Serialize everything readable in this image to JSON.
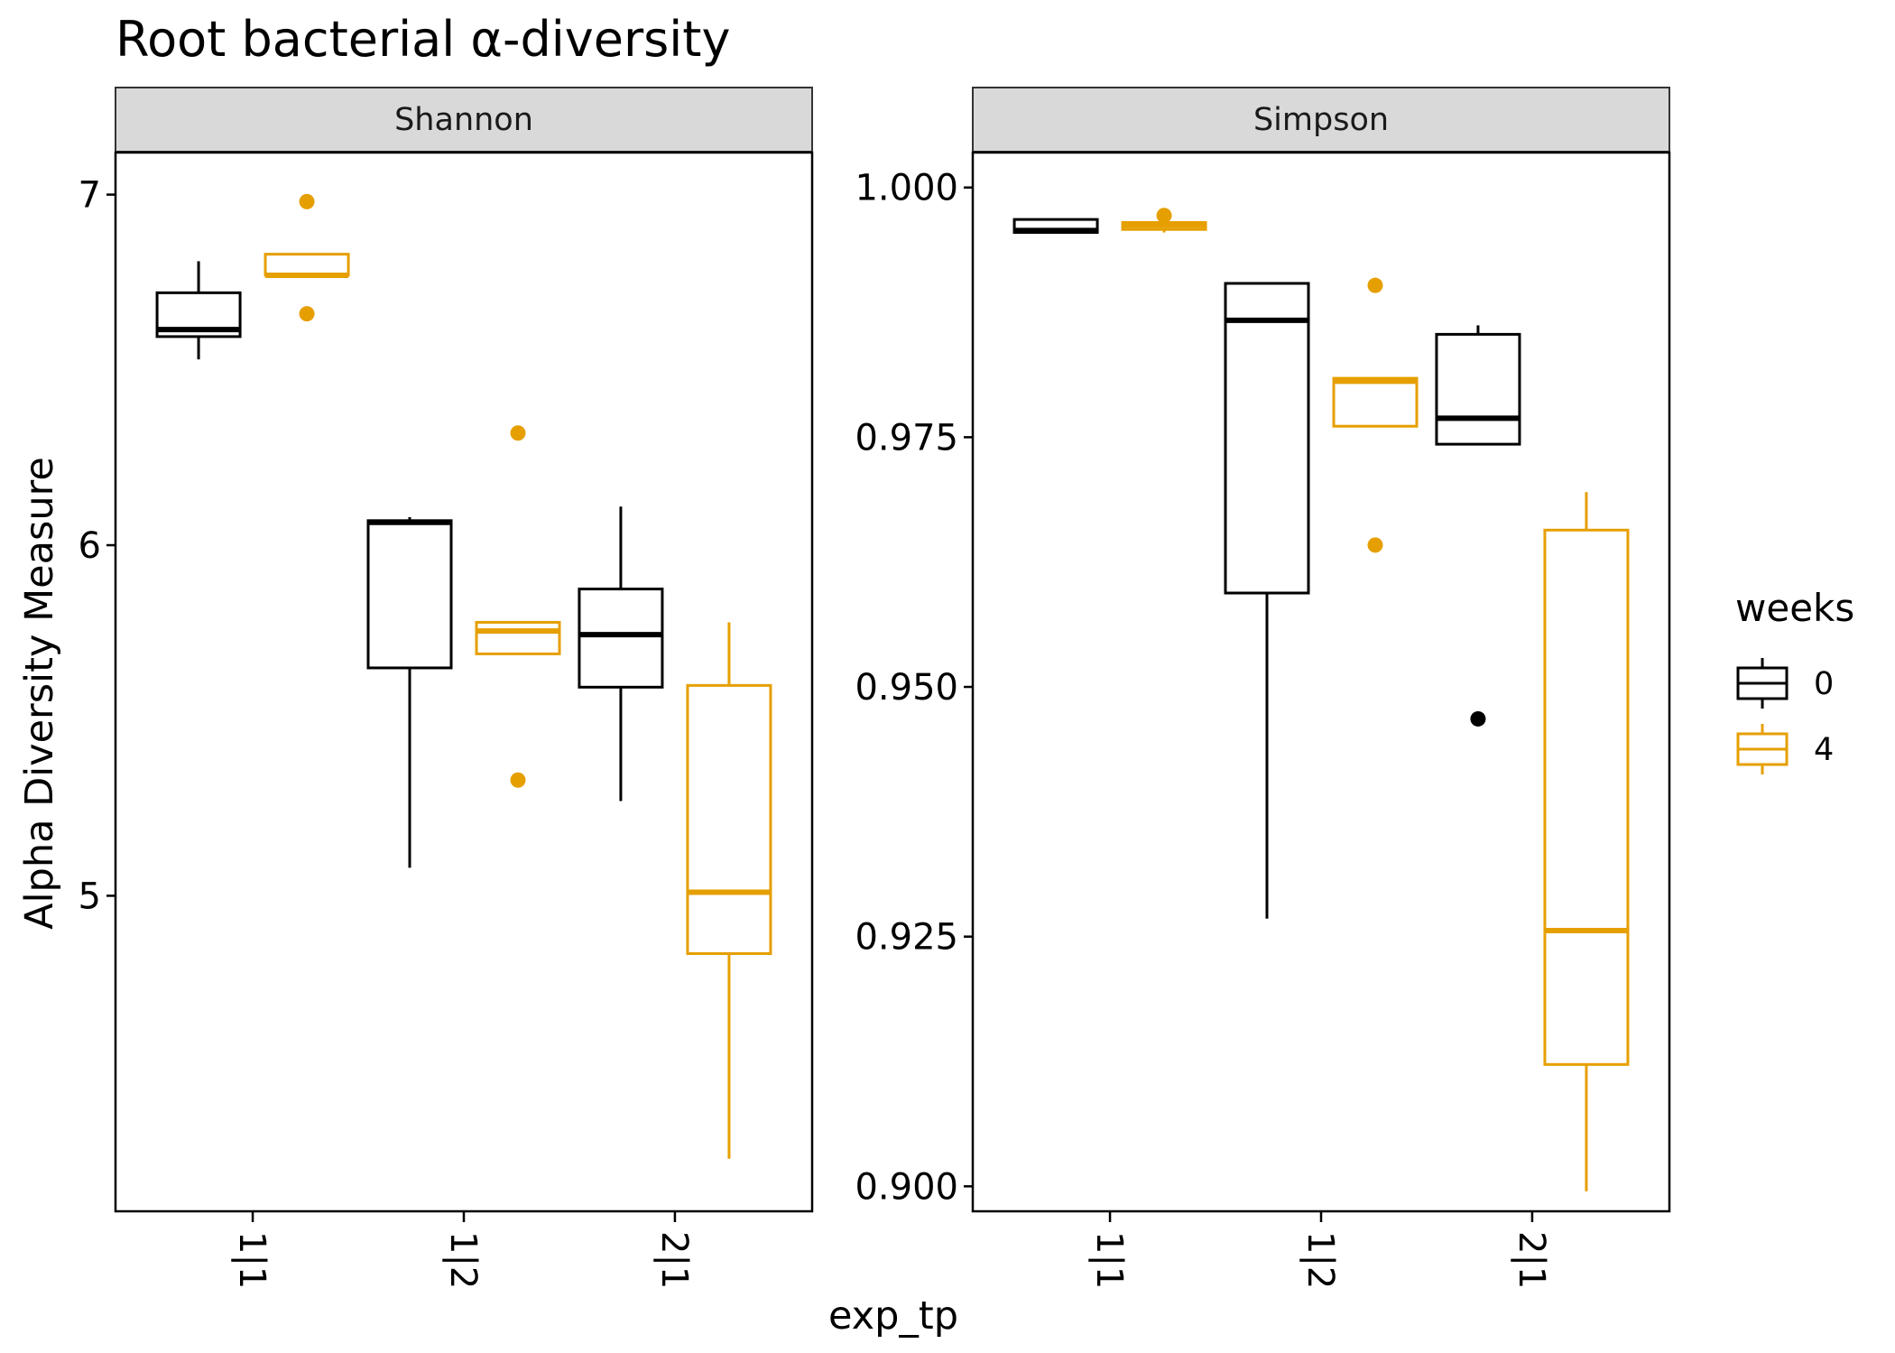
{
  "chart_data": {
    "type": "boxplot",
    "title": "Root bacterial α-diversity",
    "xlabel": "exp_tp",
    "ylabel": "Alpha Diversity Measure",
    "categories": [
      "1|1",
      "1|2",
      "2|1"
    ],
    "legend": {
      "title": "weeks",
      "placement": "right",
      "entries": [
        {
          "label": "0",
          "color": "#000000"
        },
        {
          "label": "4",
          "color": "#E69F00"
        }
      ]
    },
    "panels": [
      {
        "name": "Shannon",
        "ylim": [
          4.1,
          7.12
        ],
        "yticks": [
          "5",
          "6",
          "7"
        ],
        "series": [
          {
            "name": "0",
            "boxes": [
              {
                "category": "1|1",
                "min": 6.53,
                "q1": 6.595,
                "median": 6.615,
                "q3": 6.72,
                "max": 6.81,
                "outliers": []
              },
              {
                "category": "1|2",
                "min": 5.08,
                "q1": 5.65,
                "median": 6.065,
                "q3": 6.07,
                "max": 6.08,
                "outliers": []
              },
              {
                "category": "2|1",
                "min": 5.27,
                "q1": 5.595,
                "median": 5.745,
                "q3": 5.875,
                "max": 6.11,
                "outliers": []
              }
            ]
          },
          {
            "name": "4",
            "boxes": [
              {
                "category": "1|1",
                "min": 6.77,
                "q1": 6.77,
                "median": 6.77,
                "q3": 6.83,
                "max": 6.83,
                "outliers": [
                  6.98,
                  6.66
                ]
              },
              {
                "category": "1|2",
                "min": 5.69,
                "q1": 5.69,
                "median": 5.755,
                "q3": 5.78,
                "max": 5.78,
                "outliers": [
                  6.32,
                  5.33
                ]
              },
              {
                "category": "2|1",
                "min": 4.25,
                "q1": 4.835,
                "median": 5.01,
                "q3": 5.6,
                "max": 5.78,
                "outliers": []
              }
            ]
          }
        ]
      },
      {
        "name": "Simpson",
        "ylim": [
          0.8975,
          1.0035
        ],
        "yticks": [
          "0.900",
          "0.925",
          "0.950",
          "0.975",
          "1.000"
        ],
        "series": [
          {
            "name": "0",
            "boxes": [
              {
                "category": "1|1",
                "min": 0.9955,
                "q1": 0.9955,
                "median": 0.9957,
                "q3": 0.9968,
                "max": 0.9968,
                "outliers": []
              },
              {
                "category": "1|2",
                "min": 0.9268,
                "q1": 0.9594,
                "median": 0.9867,
                "q3": 0.9904,
                "max": 0.9904,
                "outliers": []
              },
              {
                "category": "2|1",
                "min": 0.9743,
                "q1": 0.9743,
                "median": 0.9769,
                "q3": 0.9853,
                "max": 0.9862,
                "outliers": [
                  0.9468
                ]
              }
            ]
          },
          {
            "name": "4",
            "boxes": [
              {
                "category": "1|1",
                "min": 0.9955,
                "q1": 0.9958,
                "median": 0.9962,
                "q3": 0.9965,
                "max": 0.9965,
                "outliers": [
                  0.9972
                ]
              },
              {
                "category": "1|2",
                "min": 0.9761,
                "q1": 0.9761,
                "median": 0.9806,
                "q3": 0.9809,
                "max": 0.9809,
                "outliers": [
                  0.9902,
                  0.9642
                ]
              },
              {
                "category": "2|1",
                "min": 0.8995,
                "q1": 0.9122,
                "median": 0.9256,
                "q3": 0.9657,
                "max": 0.9695,
                "outliers": []
              }
            ]
          }
        ]
      }
    ]
  }
}
